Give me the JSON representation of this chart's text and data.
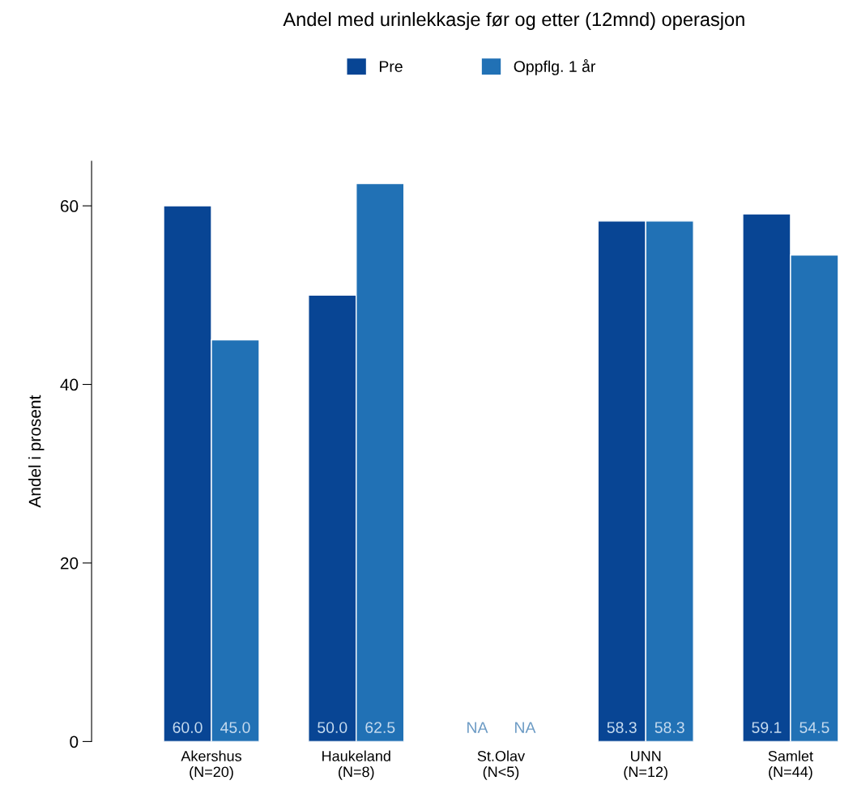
{
  "chart_data": {
    "type": "bar",
    "title": "Andel med urinlekkasje før og etter (12mnd) operasjon",
    "ylabel": "Andel i prosent",
    "categories": [
      "Akershus\n(N=20)",
      "Haukeland\n(N=8)",
      "St.Olav\n(N<5)",
      "UNN\n(N=12)",
      "Samlet\n(N=44)"
    ],
    "series": [
      {
        "name": "Pre",
        "color": "#084594",
        "values": [
          60.0,
          50.0,
          null,
          58.3,
          59.1
        ],
        "value_labels": [
          "60.0",
          "50.0",
          "NA",
          "58.3",
          "59.1"
        ]
      },
      {
        "name": "Oppflg. 1 år",
        "color": "#2171b5",
        "values": [
          45.0,
          62.5,
          null,
          58.3,
          54.5
        ],
        "value_labels": [
          "45.0",
          "62.5",
          "NA",
          "58.3",
          "54.5"
        ]
      }
    ],
    "ylim": [
      0,
      65
    ],
    "yticks": [
      0,
      20,
      40,
      60
    ],
    "grid": false,
    "legend": "top"
  }
}
